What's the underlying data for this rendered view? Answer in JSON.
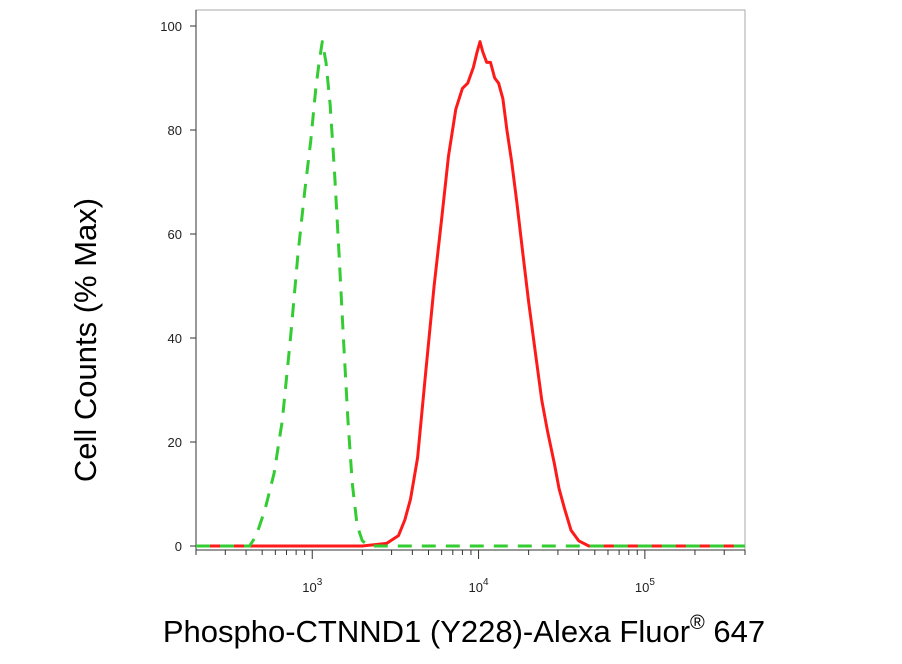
{
  "chart_data": {
    "type": "line",
    "title": "",
    "xlabel": "Phospho-CTNND1 (Y228)-Alexa Fluor",
    "xlabel_superscript": "®",
    "xlabel_suffix": " 647",
    "ylabel": "Cell Counts (% Max)",
    "x_scale": "log",
    "xlim": [
      200,
      400000
    ],
    "ylim": [
      0,
      100
    ],
    "x_ticks": [
      {
        "value": 1000,
        "base": "10",
        "exp": "3"
      },
      {
        "value": 10000,
        "base": "10",
        "exp": "4"
      },
      {
        "value": 100000,
        "base": "10",
        "exp": "5"
      }
    ],
    "y_ticks": [
      0,
      20,
      40,
      60,
      80,
      100
    ],
    "grid": false,
    "legend": "none",
    "series": [
      {
        "color": "#ff1a1a",
        "style": "solid",
        "points": [
          [
            200,
            0
          ],
          [
            2000,
            0
          ],
          [
            2800,
            0.5
          ],
          [
            3300,
            2
          ],
          [
            3600,
            5
          ],
          [
            3900,
            9
          ],
          [
            4300,
            17
          ],
          [
            4800,
            33
          ],
          [
            5400,
            50
          ],
          [
            6000,
            63
          ],
          [
            6600,
            75
          ],
          [
            7300,
            84
          ],
          [
            8000,
            88
          ],
          [
            8600,
            89
          ],
          [
            9300,
            92
          ],
          [
            9800,
            95
          ],
          [
            10200,
            97
          ],
          [
            10600,
            95
          ],
          [
            11200,
            93
          ],
          [
            11800,
            93
          ],
          [
            12500,
            90
          ],
          [
            13200,
            89
          ],
          [
            14000,
            86
          ],
          [
            14800,
            80
          ],
          [
            15800,
            74
          ],
          [
            17000,
            66
          ],
          [
            18500,
            56
          ],
          [
            20000,
            47
          ],
          [
            22000,
            37
          ],
          [
            24000,
            28
          ],
          [
            26000,
            22
          ],
          [
            28500,
            16
          ],
          [
            30500,
            11
          ],
          [
            33000,
            7
          ],
          [
            36000,
            3
          ],
          [
            40000,
            1
          ],
          [
            46000,
            0
          ],
          [
            400000,
            0
          ]
        ]
      },
      {
        "color": "#33cc33",
        "style": "dashed",
        "points": [
          [
            200,
            0
          ],
          [
            420,
            0
          ],
          [
            460,
            2
          ],
          [
            520,
            7
          ],
          [
            590,
            14
          ],
          [
            660,
            24
          ],
          [
            740,
            40
          ],
          [
            820,
            56
          ],
          [
            900,
            68
          ],
          [
            980,
            78
          ],
          [
            1050,
            88
          ],
          [
            1100,
            93
          ],
          [
            1150,
            97
          ],
          [
            1210,
            93
          ],
          [
            1280,
            85
          ],
          [
            1360,
            72
          ],
          [
            1450,
            56
          ],
          [
            1540,
            40
          ],
          [
            1640,
            24
          ],
          [
            1740,
            12
          ],
          [
            1860,
            4
          ],
          [
            2000,
            1
          ],
          [
            2200,
            0
          ],
          [
            400000,
            0
          ]
        ]
      }
    ]
  }
}
